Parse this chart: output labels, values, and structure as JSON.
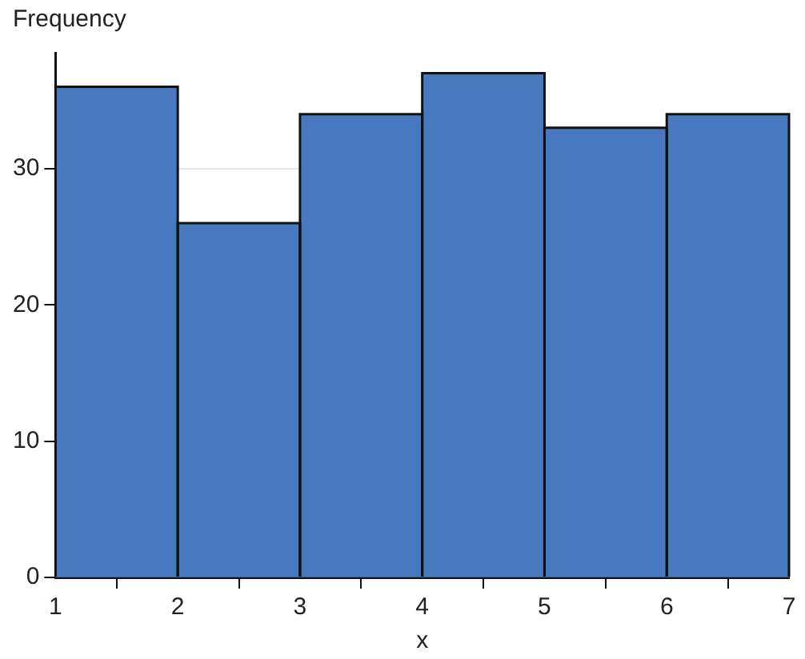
{
  "chart_data": {
    "type": "histogram",
    "ylabel": "Frequency",
    "xlabel": "x",
    "bins": [
      1,
      2,
      3,
      4,
      5,
      6,
      7
    ],
    "values": [
      36,
      26,
      34,
      37,
      33,
      34
    ],
    "color": "#4878bf",
    "xlim": [
      1,
      7
    ],
    "xticks": [
      1,
      2,
      3,
      4,
      5,
      6,
      7
    ],
    "ylim": [
      0,
      38.5
    ],
    "yticks": [
      0,
      10,
      20,
      30
    ],
    "grid": "y",
    "legend": false
  }
}
